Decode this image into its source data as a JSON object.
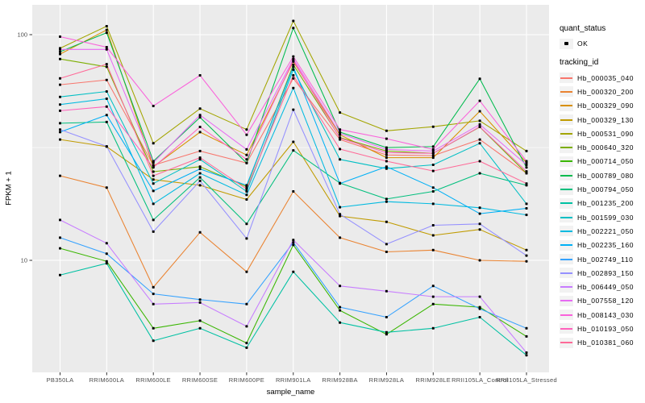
{
  "figure": {
    "panel_bg": "#EBEBEB",
    "grid_color": "#FFFFFF",
    "tick_color": "#333333",
    "tick_label_color": "#4D4D4D",
    "point_color": "#000000",
    "legend_key_bg": "#F2F2F2"
  },
  "legend": {
    "quant_status_title": "quant_status",
    "quant_status_items": [
      {
        "label": "OK"
      }
    ],
    "tracking_id_title": "tracking_id"
  },
  "chart_data": {
    "type": "line",
    "title": "",
    "xlabel": "sample_name",
    "ylabel": "FPKM + 1",
    "y_scale": "log10",
    "y_tick_values": [
      100,
      10
    ],
    "y_tick_labels": [
      "100",
      "10"
    ],
    "y_minor_values": [
      31.6
    ],
    "ylim": [
      3.2,
      135
    ],
    "legend_position": "right",
    "grid": true,
    "marker": "black-point",
    "categories": [
      "PB350LA",
      "RRIM600LA",
      "RRIM600LE",
      "RRIM600SE",
      "RRIM600PE",
      "RRIM901LA",
      "RRIM928BA",
      "RRIM928LA",
      "RRIM928LE",
      "RRII105LA_Control",
      "RRII105LA_Stressed"
    ],
    "series": [
      {
        "name": "Hb_000035_040",
        "color": "#F8766D",
        "values": [
          60,
          63,
          26.4,
          30.5,
          27,
          64,
          34.3,
          29.3,
          29.1,
          34.3,
          24.3
        ]
      },
      {
        "name": "Hb_000320_200",
        "color": "#EA8331",
        "values": [
          23.7,
          21,
          7.6,
          13.3,
          8.9,
          20.2,
          12.6,
          10.9,
          11.1,
          10,
          9.9
        ]
      },
      {
        "name": "Hb_000329_090",
        "color": "#D89000",
        "values": [
          82,
          105,
          26,
          37,
          29.3,
          76,
          36,
          28.5,
          28.5,
          45.8,
          27.1
        ]
      },
      {
        "name": "Hb_000329_130",
        "color": "#C09B00",
        "values": [
          34.3,
          31.9,
          22.8,
          21.5,
          18.6,
          33.5,
          15.7,
          14.8,
          12.9,
          13.7,
          11.1
        ]
      },
      {
        "name": "Hb_000531_090",
        "color": "#A3A500",
        "values": [
          87,
          109,
          33,
          47,
          38,
          115,
          45.2,
          37.5,
          39.1,
          41.5,
          30.5
        ]
      },
      {
        "name": "Hb_000640_320",
        "color": "#7CAE00",
        "values": [
          78,
          72,
          24.7,
          26,
          21.2,
          73.5,
          35,
          30.5,
          29.8,
          39,
          24.3
        ]
      },
      {
        "name": "Hb_000714_050",
        "color": "#39B600",
        "values": [
          11.3,
          9.9,
          5.0,
          5.4,
          4.3,
          11.7,
          6.0,
          4.7,
          6.4,
          6.2,
          4.6
        ]
      },
      {
        "name": "Hb_000789_080",
        "color": "#00BB4E",
        "values": [
          84,
          102,
          27.5,
          43,
          27,
          107,
          37,
          31.6,
          31.9,
          63.7,
          25.8
        ]
      },
      {
        "name": "Hb_000794_050",
        "color": "#00BF7D",
        "values": [
          40.5,
          41,
          15.1,
          23.3,
          14.5,
          30.7,
          22,
          18.7,
          20.2,
          24.3,
          21.5
        ]
      },
      {
        "name": "Hb_001235_200",
        "color": "#00C1A3",
        "values": [
          8.6,
          9.7,
          4.4,
          5.0,
          4.1,
          8.9,
          5.3,
          4.8,
          5.0,
          5.6,
          3.8
        ]
      },
      {
        "name": "Hb_001599_030",
        "color": "#00BFC4",
        "values": [
          53,
          56,
          21.9,
          28,
          20.2,
          70,
          28,
          25.5,
          26.5,
          33,
          17.8
        ]
      },
      {
        "name": "Hb_002221_050",
        "color": "#00BAE0",
        "values": [
          49,
          52,
          17.8,
          24.3,
          19.5,
          58,
          17.2,
          18.2,
          17.8,
          17.1,
          15.9
        ]
      },
      {
        "name": "Hb_002235_160",
        "color": "#00B0F6",
        "values": [
          37,
          44,
          20.3,
          25.4,
          21.5,
          72,
          21.9,
          26,
          21,
          16.1,
          17
        ]
      },
      {
        "name": "Hb_002749_110",
        "color": "#35A2FF",
        "values": [
          12.6,
          10.7,
          7.1,
          6.7,
          6.4,
          12.0,
          6.2,
          5.6,
          7.7,
          6.1,
          5.0
        ]
      },
      {
        "name": "Hb_002893_150",
        "color": "#9590FF",
        "values": [
          38,
          32,
          13.4,
          22.5,
          12.5,
          46.5,
          16,
          11.8,
          14.3,
          14.5,
          10.5
        ]
      },
      {
        "name": "Hb_006449_050",
        "color": "#C77CFF",
        "values": [
          15.1,
          11.9,
          6.4,
          6.5,
          5.1,
          12.3,
          7.7,
          7.3,
          6.9,
          6.9,
          3.9
        ]
      },
      {
        "name": "Hb_007558_120",
        "color": "#E76BF3",
        "values": [
          86,
          86,
          27.1,
          44,
          31,
          78,
          36.5,
          31,
          30.5,
          40,
          26.5
        ]
      },
      {
        "name": "Hb_008143_030",
        "color": "#FA62DB",
        "values": [
          98,
          88,
          48.3,
          66,
          36,
          80,
          38,
          34.6,
          31,
          50.9,
          27.5
        ]
      },
      {
        "name": "Hb_010193_050",
        "color": "#FF62BC",
        "values": [
          46,
          48,
          25.8,
          39,
          28,
          77,
          34.8,
          30,
          29.8,
          39.1,
          24.8
        ]
      },
      {
        "name": "Hb_010381_060",
        "color": "#FF6A98",
        "values": [
          64,
          74,
          23.7,
          28.5,
          20.7,
          66,
          31.1,
          27.5,
          24.9,
          27.5,
          21.9
        ]
      }
    ]
  }
}
